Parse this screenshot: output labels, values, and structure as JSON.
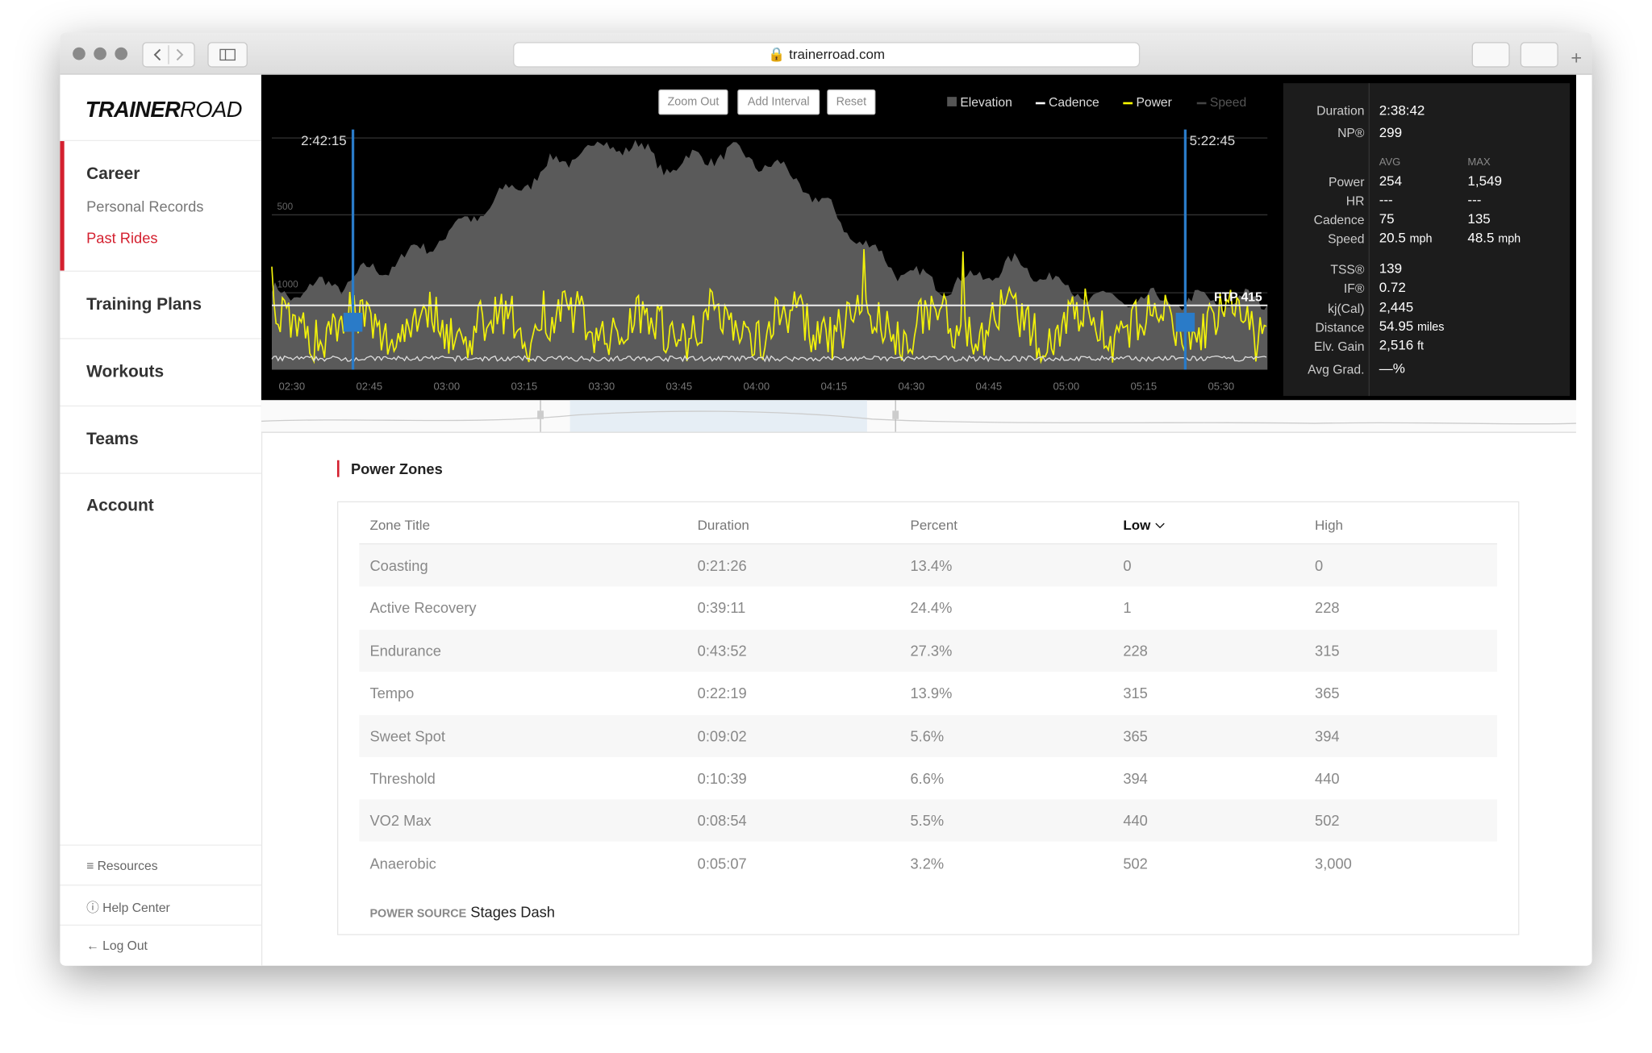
{
  "browser": {
    "url": "trainerroad.com"
  },
  "sidebar": {
    "logo": [
      "TRAINER",
      "ROAD"
    ],
    "career": {
      "label": "Career",
      "children": [
        "Personal Records",
        "Past Rides"
      ]
    },
    "nav": [
      "Training Plans",
      "Workouts",
      "Teams",
      "Account"
    ],
    "footer": [
      "Resources",
      "Help Center",
      "Log Out"
    ]
  },
  "chart": {
    "buttons": [
      "Zoom Out",
      "Add Interval",
      "Reset"
    ],
    "legend": [
      "Elevation",
      "Cadence",
      "Power",
      "Speed"
    ],
    "start_time": "2:42:15",
    "end_time": "5:22:45",
    "y_labels": [
      "1000",
      "500"
    ],
    "ftp_label": "FTP 415",
    "x_ticks": [
      "02:30",
      "02:45",
      "03:00",
      "03:15",
      "03:30",
      "03:45",
      "04:00",
      "04:15",
      "04:30",
      "04:45",
      "05:00",
      "05:15",
      "05:30"
    ]
  },
  "stats": {
    "top": [
      [
        "Duration",
        "2:38:42"
      ],
      [
        "NP®",
        "299"
      ]
    ],
    "headers": [
      "AVG",
      "MAX"
    ],
    "middle": [
      {
        "label": "Power",
        "avg": "254",
        "max": "1,549"
      },
      {
        "label": "HR",
        "avg": "---",
        "max": "---"
      },
      {
        "label": "Cadence",
        "avg": "75",
        "max": "135"
      },
      {
        "label": "Speed",
        "avg": "20.5",
        "avg_unit": "mph",
        "max": "48.5",
        "max_unit": "mph"
      }
    ],
    "bottom": [
      {
        "label": "TSS®",
        "value": "139"
      },
      {
        "label": "IF®",
        "value": "0.72"
      },
      {
        "label": "kj(Cal)",
        "value": "2,445"
      },
      {
        "label": "Distance",
        "value": "54.95",
        "unit": "miles"
      },
      {
        "label": "Elv. Gain",
        "value": "2,516",
        "unit": "ft"
      },
      {
        "label": "Avg Grad.",
        "value": "—%"
      }
    ]
  },
  "power_zones": {
    "title": "Power Zones",
    "columns": [
      "Zone Title",
      "Duration",
      "Percent",
      "Low",
      "High"
    ],
    "rows": [
      [
        "Coasting",
        "0:21:26",
        "13.4%",
        "0",
        "0"
      ],
      [
        "Active Recovery",
        "0:39:11",
        "24.4%",
        "1",
        "228"
      ],
      [
        "Endurance",
        "0:43:52",
        "27.3%",
        "228",
        "315"
      ],
      [
        "Tempo",
        "0:22:19",
        "13.9%",
        "315",
        "365"
      ],
      [
        "Sweet Spot",
        "0:09:02",
        "5.6%",
        "365",
        "394"
      ],
      [
        "Threshold",
        "0:10:39",
        "6.6%",
        "394",
        "440"
      ],
      [
        "VO2 Max",
        "0:08:54",
        "5.5%",
        "440",
        "502"
      ],
      [
        "Anaerobic",
        "0:05:07",
        "3.2%",
        "502",
        "3,000"
      ]
    ],
    "power_source_label": "POWER SOURCE",
    "power_source": "Stages Dash"
  }
}
